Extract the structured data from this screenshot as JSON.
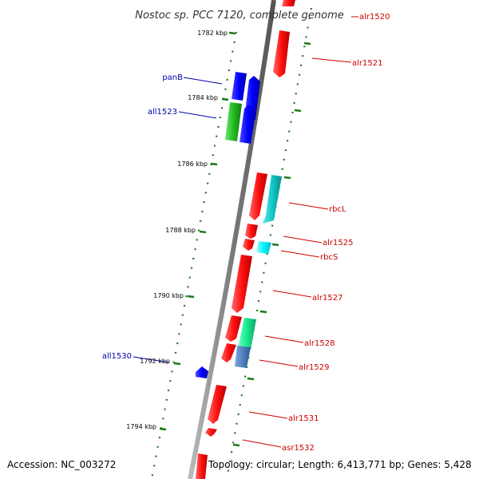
{
  "title": "Nostoc sp. PCC 7120, complete genome",
  "footer": {
    "accession": "Accession: NC_003272",
    "topology": "Topology: circular; Length: 6,413,771 bp; Genes: 5,428"
  },
  "ticks": [
    {
      "label": "1782 kbp"
    },
    {
      "label": "1784 kbp"
    },
    {
      "label": "1786 kbp"
    },
    {
      "label": "1788 kbp"
    },
    {
      "label": "1790 kbp"
    },
    {
      "label": "1792 kbp"
    },
    {
      "label": "1794 kbp"
    }
  ],
  "genes": [
    {
      "name": "alr1520",
      "strand": "+"
    },
    {
      "name": "alr1521",
      "strand": "+"
    },
    {
      "name": "panB",
      "strand": "-"
    },
    {
      "name": "all1523",
      "strand": "-"
    },
    {
      "name": "rbcL",
      "strand": "+"
    },
    {
      "name": "alr1525",
      "strand": "+"
    },
    {
      "name": "rbcS",
      "strand": "+"
    },
    {
      "name": "alr1527",
      "strand": "+"
    },
    {
      "name": "alr1528",
      "strand": "+"
    },
    {
      "name": "alr1529",
      "strand": "+"
    },
    {
      "name": "all1530",
      "strand": "-"
    },
    {
      "name": "alr1531",
      "strand": "+"
    },
    {
      "name": "asr1532",
      "strand": "+"
    }
  ],
  "colors": {
    "forward_label": "#cc0000",
    "reverse_label": "#0000aa",
    "tick": "#1a7a1a",
    "backbone": "#888888"
  }
}
